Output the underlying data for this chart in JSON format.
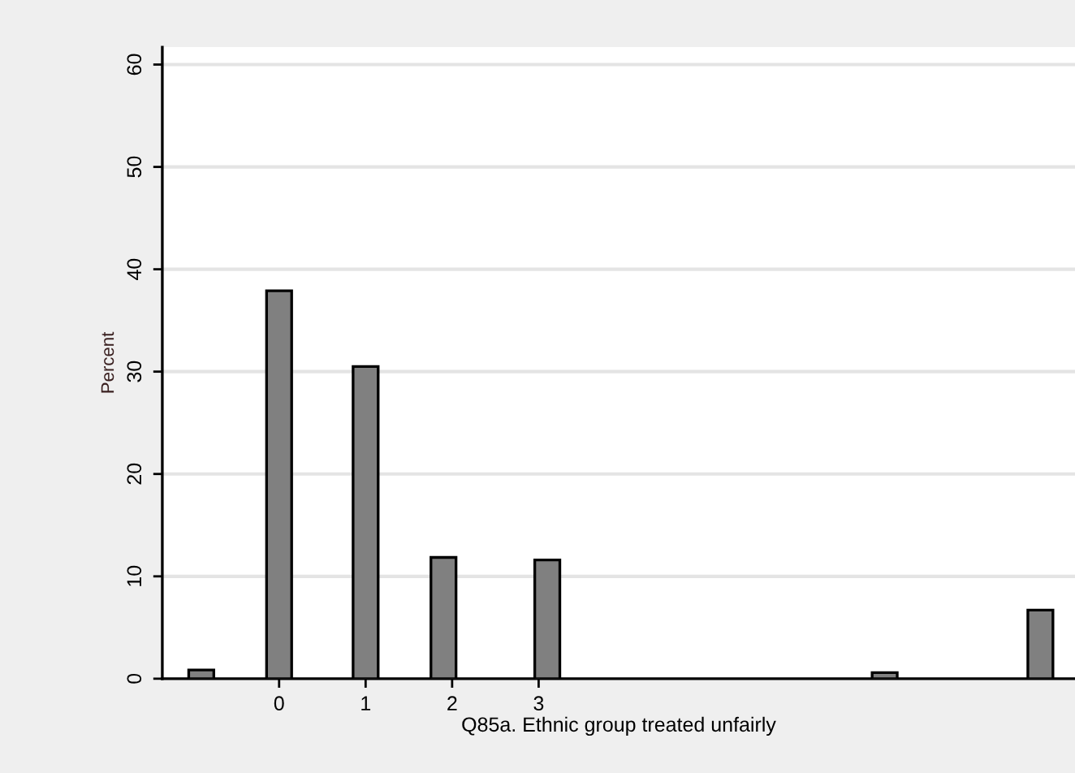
{
  "chart_data": {
    "type": "bar",
    "xlabel": "Q85a. Ethnic group treated unfairly",
    "ylabel": "Percent",
    "x": [
      -0.9,
      0,
      1,
      1.9,
      3.1,
      7,
      8.8
    ],
    "values": [
      0.85,
      37.9,
      30.5,
      11.85,
      11.6,
      0.6,
      6.7
    ],
    "color": "#808080",
    "xlim": [
      -1.35,
      9.2
    ],
    "xticks": [
      0,
      1,
      2,
      3
    ],
    "ylim": [
      0,
      61.7
    ],
    "yticks": [
      0,
      10,
      20,
      30,
      40,
      50,
      60
    ],
    "grid": "y"
  }
}
